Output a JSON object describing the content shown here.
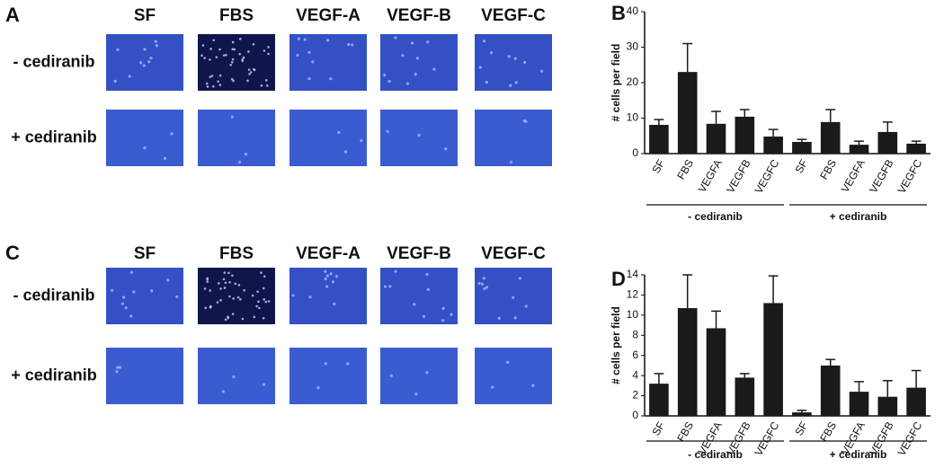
{
  "panels": [
    {
      "letter": "A",
      "columns": [
        "SF",
        "FBS",
        "VEGF-A",
        "VEGF-B",
        "VEGF-C"
      ],
      "rows": [
        "- cediranib",
        "+ cediranib"
      ]
    },
    {
      "letter": "C",
      "columns": [
        "SF",
        "FBS",
        "VEGF-A",
        "VEGF-B",
        "VEGF-C"
      ],
      "rows": [
        "- cediranib",
        "+ cediranib"
      ]
    }
  ],
  "chart_data": [
    {
      "type": "bar",
      "panel": "B",
      "ylabel": "# cells per field",
      "categories": [
        "SF",
        "FBS",
        "VEGFA",
        "VEGFB",
        "VEGFC",
        "SF",
        "FBS",
        "VEGFA",
        "VEGFB",
        "VEGFC"
      ],
      "groups": [
        "- cediranib",
        "+ cediranib"
      ],
      "values": [
        8.1,
        23,
        8.4,
        10.4,
        4.8,
        3.3,
        8.9,
        2.5,
        6.1,
        2.8
      ],
      "errors": [
        1.5,
        8,
        3.5,
        2,
        2,
        0.7,
        3.5,
        1,
        2.8,
        0.7
      ],
      "color": "#1a1a1a",
      "ylim": [
        0,
        40
      ],
      "yticks": [
        0,
        10,
        20,
        30,
        40
      ]
    },
    {
      "type": "bar",
      "panel": "D",
      "ylabel": "# cells per field",
      "categories": [
        "SF",
        "FBS",
        "VEGFA",
        "VEGFB",
        "VEGFC",
        "SF",
        "FBS",
        "VEGFA",
        "VEGFB",
        "VEGFC"
      ],
      "groups": [
        "- cediranib",
        "+ cediranib"
      ],
      "values": [
        3.2,
        10.7,
        8.7,
        3.8,
        11.2,
        0.35,
        5,
        2.4,
        1.9,
        2.8
      ],
      "errors": [
        1,
        3.3,
        1.7,
        0.4,
        2.7,
        0.2,
        0.6,
        1,
        1.6,
        1.7
      ],
      "color": "#1a1a1a",
      "ylim": [
        0,
        14
      ],
      "yticks": [
        0,
        2,
        4,
        6,
        8,
        10,
        12,
        14
      ]
    }
  ]
}
